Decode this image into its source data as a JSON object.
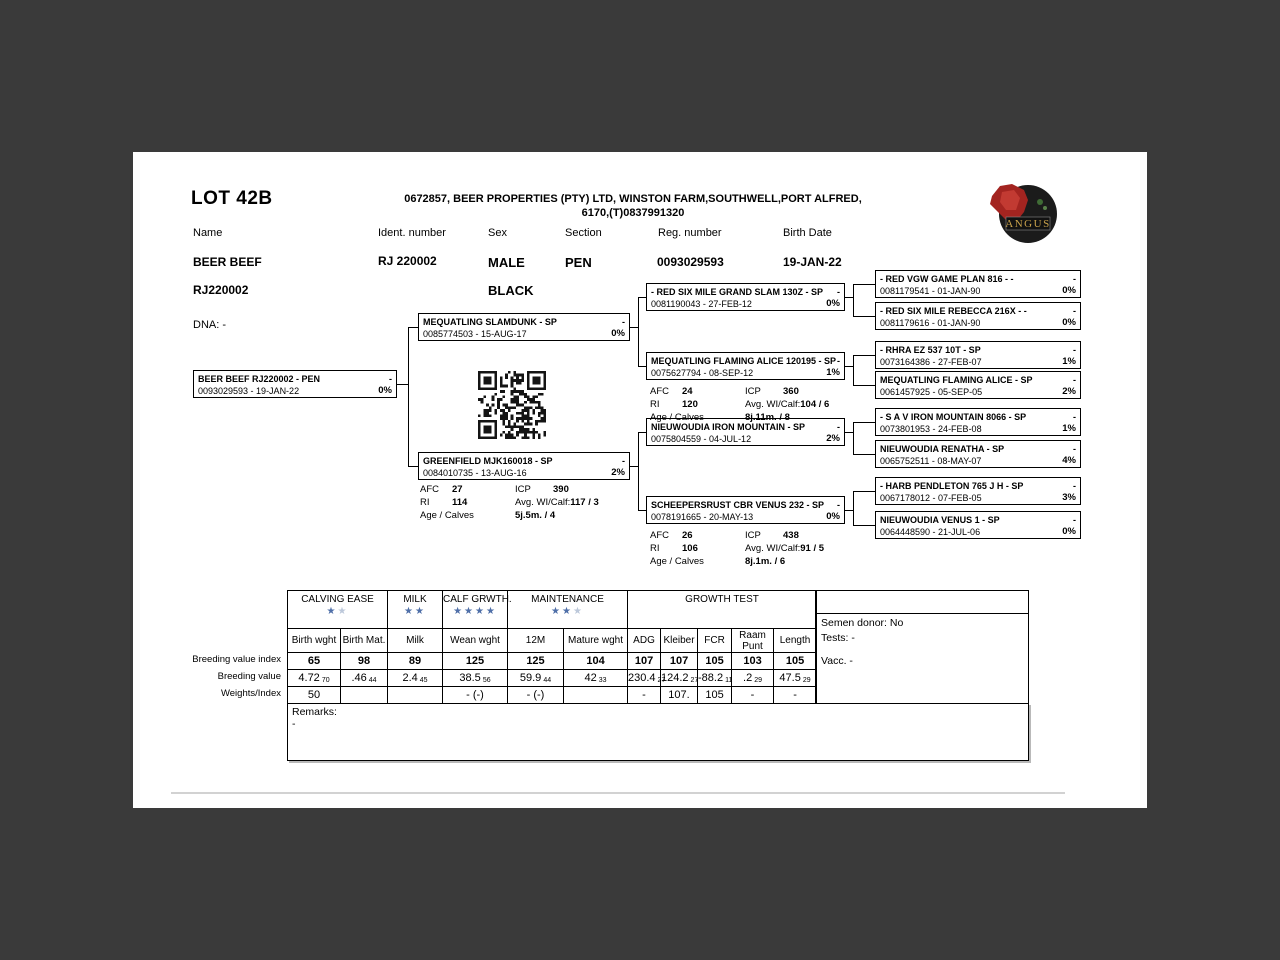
{
  "header": {
    "lot": "LOT 42B",
    "address1": "0672857,  BEER PROPERTIES (PTY) LTD, WINSTON FARM,SOUTHWELL,PORT ALFRED,",
    "address2": "6170,(T)0837991320",
    "logo_text": "ANGUS"
  },
  "identity": {
    "labels": {
      "name": "Name",
      "ident": "Ident. number",
      "sex": "Sex",
      "section": "Section",
      "reg": "Reg. number",
      "birth": "Birth Date"
    },
    "values": {
      "name": "BEER BEEF",
      "ident": "RJ 220002",
      "sex": "MALE",
      "section": "PEN",
      "reg": "0093029593",
      "birth": "19-JAN-22",
      "name2": "RJ220002",
      "color": "BLACK"
    },
    "dna": "DNA: -"
  },
  "pedigree": {
    "dash": "-",
    "subject": {
      "name": "BEER BEEF RJ220002 - PEN",
      "reg": "0093029593 - 19-JAN-22",
      "pct": "0%"
    },
    "sire": {
      "name": "MEQUATLING SLAMDUNK - SP",
      "reg": "0085774503 - 15-AUG-17",
      "pct": "0%"
    },
    "dam": {
      "name": "GREENFIELD MJK160018 - SP",
      "reg": "0084010735 - 13-AUG-16",
      "pct": "2%"
    },
    "gps": [
      {
        "name": "- RED SIX MILE GRAND SLAM 130Z - SP",
        "reg": "0081190043 - 27-FEB-12",
        "pct": "0%"
      },
      {
        "name": "MEQUATLING FLAMING ALICE 120195 - SP",
        "reg": "0075627794 - 08-SEP-12",
        "pct": "1%"
      },
      {
        "name": "NIEUWOUDIA IRON MOUNTAIN - SP",
        "reg": "0075804559 - 04-JUL-12",
        "pct": "2%"
      },
      {
        "name": "SCHEEPERSRUST CBR VENUS 232 - SP",
        "reg": "0078191665 - 20-MAY-13",
        "pct": "0%"
      }
    ],
    "ggps": [
      {
        "name": "- RED VGW GAME PLAN 816 - -",
        "reg": "0081179541 - 01-JAN-90",
        "pct": "0%"
      },
      {
        "name": "- RED SIX MILE REBECCA 216X - -",
        "reg": "0081179616 - 01-JAN-90",
        "pct": "0%"
      },
      {
        "name": "- RHRA EZ 537 10T - SP",
        "reg": "0073164386 - 27-FEB-07",
        "pct": "1%"
      },
      {
        "name": "MEQUATLING FLAMING ALICE - SP",
        "reg": "0061457925 - 05-SEP-05",
        "pct": "2%"
      },
      {
        "name": "- S A V IRON MOUNTAIN 8066 - SP",
        "reg": "0073801953 - 24-FEB-08",
        "pct": "1%"
      },
      {
        "name": "NIEUWOUDIA RENATHA - SP",
        "reg": "0065752511 - 08-MAY-07",
        "pct": "4%"
      },
      {
        "name": "- HARB PENDLETON 765 J H - SP",
        "reg": "0067178012 - 07-FEB-05",
        "pct": "3%"
      },
      {
        "name": "NIEUWOUDIA VENUS 1 - SP",
        "reg": "0064448590 - 21-JUL-06",
        "pct": "0%"
      }
    ],
    "dam_stats": {
      "afc_label": "AFC",
      "afc": "27",
      "icp_label": "ICP",
      "icp": "390",
      "ri_label": "RI",
      "ri": "114",
      "avg_label": "Avg. WI/Calf:",
      "avg": "117 / 3",
      "age_label": "Age / Calves",
      "age": "5j.5m. / 4"
    },
    "gp2_stats": {
      "afc_label": "AFC",
      "afc": "24",
      "icp_label": "ICP",
      "icp": "360",
      "ri_label": "RI",
      "ri": "120",
      "avg_label": "Avg. WI/Calf:",
      "avg": "104 / 6",
      "age_label": "Age / Calves",
      "age": "8j.11m. / 8"
    },
    "gp4_stats": {
      "afc_label": "AFC",
      "afc": "26",
      "icp_label": "ICP",
      "icp": "438",
      "ri_label": "RI",
      "ri": "106",
      "avg_label": "Avg. WI/Calf:",
      "avg": "91 / 5",
      "age_label": "Age / Calves",
      "age": "8j.1m. / 6"
    }
  },
  "table": {
    "groups": [
      {
        "label": "CALVING EASE",
        "stars_filled": "★",
        "stars_light": "★"
      },
      {
        "label": "MILK",
        "stars_filled": "★★",
        "stars_light": ""
      },
      {
        "label": "CALF GRWTH.",
        "stars_filled": "★★★★",
        "stars_light": ""
      },
      {
        "label": "MAINTENANCE",
        "stars_filled": "★★",
        "stars_light": "★"
      },
      {
        "label": "GROWTH TEST",
        "stars_filled": "",
        "stars_light": ""
      }
    ],
    "columns": [
      "Birth wght",
      "Birth Mat.",
      "Milk",
      "Wean wght",
      "12M",
      "Mature wght",
      "ADG",
      "Kleiber",
      "FCR",
      "Raam Punt",
      "Length"
    ],
    "row_labels": [
      "Breeding value index",
      "Breeding value",
      "Weights/Index"
    ],
    "index": [
      "65",
      "98",
      "89",
      "125",
      "125",
      "104",
      "107",
      "107",
      "105",
      "103",
      "105"
    ],
    "values": [
      {
        "v": "4.72",
        "s": "70"
      },
      {
        "v": ".46",
        "s": "44"
      },
      {
        "v": "2.4",
        "s": "45"
      },
      {
        "v": "38.5",
        "s": "56"
      },
      {
        "v": "59.9",
        "s": "44"
      },
      {
        "v": "42",
        "s": "33"
      },
      {
        "v": "230.4",
        "s": "27"
      },
      {
        "v": "124.2",
        "s": "27"
      },
      {
        "v": "-88.2",
        "s": "11"
      },
      {
        "v": ".2",
        "s": "29"
      },
      {
        "v": "47.5",
        "s": "29"
      }
    ],
    "weights": [
      "50",
      "",
      "",
      "-  (-)",
      "-  (-)",
      "",
      "-",
      "107.",
      "105",
      "-",
      "-"
    ]
  },
  "panel": {
    "semen": "Semen donor: No",
    "tests": "Tests: -",
    "vacc": "Vacc. -"
  },
  "remarks": {
    "label": "Remarks:",
    "value": "-"
  }
}
